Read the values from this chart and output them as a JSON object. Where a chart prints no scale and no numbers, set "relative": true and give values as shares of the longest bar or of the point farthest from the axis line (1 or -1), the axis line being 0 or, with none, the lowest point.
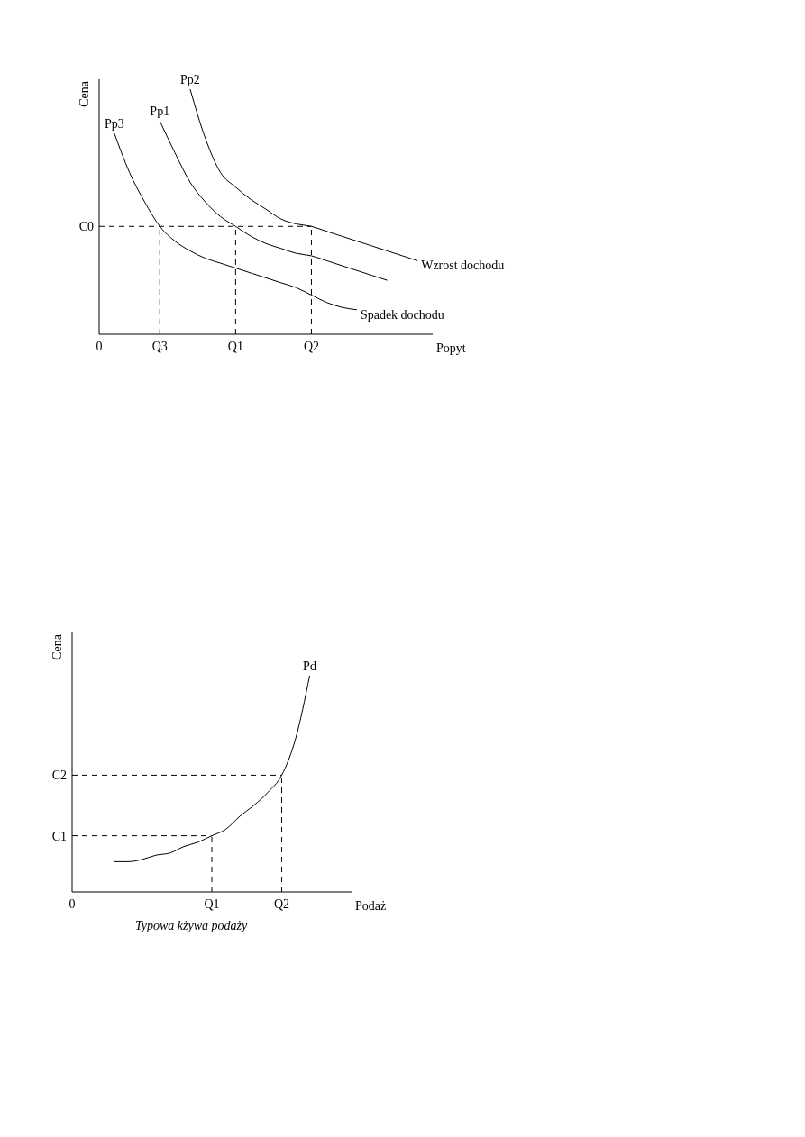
{
  "chart_data": [
    {
      "type": "line",
      "xlabel": "Popyt",
      "ylabel": "Cena",
      "relative": true,
      "marker": "none",
      "categories": [
        "0",
        null,
        null,
        null,
        "Q3",
        null,
        null,
        null,
        null,
        "Q1",
        null,
        null,
        null,
        null,
        "Q2",
        null,
        null,
        null,
        null,
        null,
        null,
        null,
        null
      ],
      "series": [
        {
          "name": "Pp3",
          "color": "#000000",
          "values": [
            null,
            0.82,
            0.66,
            0.54,
            0.44,
            0.38,
            0.34,
            0.31,
            0.29,
            0.27,
            0.25,
            0.23,
            0.21,
            0.19,
            0.16,
            0.13,
            0.11,
            0.1,
            null,
            null,
            null,
            null,
            null
          ]
        },
        {
          "name": "Pp1",
          "color": "#000000",
          "values": [
            null,
            null,
            null,
            null,
            0.87,
            0.74,
            0.62,
            0.54,
            0.48,
            0.44,
            0.4,
            0.37,
            0.35,
            0.33,
            0.32,
            0.3,
            0.28,
            0.26,
            0.24,
            0.22,
            null,
            null,
            null
          ]
        },
        {
          "name": "Pp2",
          "color": "#000000",
          "values": [
            null,
            null,
            null,
            null,
            null,
            null,
            1,
            0.8,
            0.66,
            0.6,
            0.55,
            0.51,
            0.47,
            0.45,
            0.44,
            0.42,
            0.4,
            0.38,
            0.36,
            0.34,
            0.32,
            0.3,
            null
          ]
        }
      ],
      "ref_lines": [
        {
          "axis": "y",
          "value": 0.44,
          "label": "C0",
          "line_style": "dashed",
          "color": "#000000"
        },
        {
          "axis": "x",
          "value": "Q3",
          "line_style": "dashed",
          "color": "#000000"
        },
        {
          "axis": "x",
          "value": "Q1",
          "line_style": "dashed",
          "color": "#000000"
        },
        {
          "axis": "x",
          "value": "Q2",
          "line_style": "dashed",
          "color": "#000000"
        }
      ],
      "annotations": [
        "Wzrost dochodu",
        "Spadek dochodu"
      ]
    },
    {
      "type": "line",
      "xlabel": "Podaż",
      "ylabel": "Cena",
      "relative": true,
      "marker": "none",
      "categories": [
        "0",
        null,
        null,
        null,
        null,
        null,
        null,
        null,
        null,
        null,
        "Q1",
        null,
        null,
        null,
        null,
        "Q2",
        null,
        null,
        null,
        null,
        null
      ],
      "series": [
        {
          "name": "Pd",
          "color": "#000000",
          "values": [
            null,
            null,
            null,
            0.14,
            0.14,
            0.15,
            0.17,
            0.18,
            0.21,
            0.23,
            0.26,
            0.29,
            0.35,
            0.4,
            0.46,
            0.54,
            0.71,
            1,
            null,
            null,
            null
          ]
        }
      ],
      "ref_lines": [
        {
          "axis": "y",
          "value": 0.26,
          "label": "C1",
          "line_style": "dashed",
          "color": "#000000"
        },
        {
          "axis": "y",
          "value": 0.54,
          "label": "C2",
          "line_style": "dashed",
          "color": "#000000"
        },
        {
          "axis": "x",
          "value": "Q1",
          "line_style": "dashed",
          "color": "#000000"
        },
        {
          "axis": "x",
          "value": "Q2",
          "line_style": "dashed",
          "color": "#000000"
        }
      ],
      "annotations": [
        "Typowa kżywa podaży"
      ]
    }
  ]
}
